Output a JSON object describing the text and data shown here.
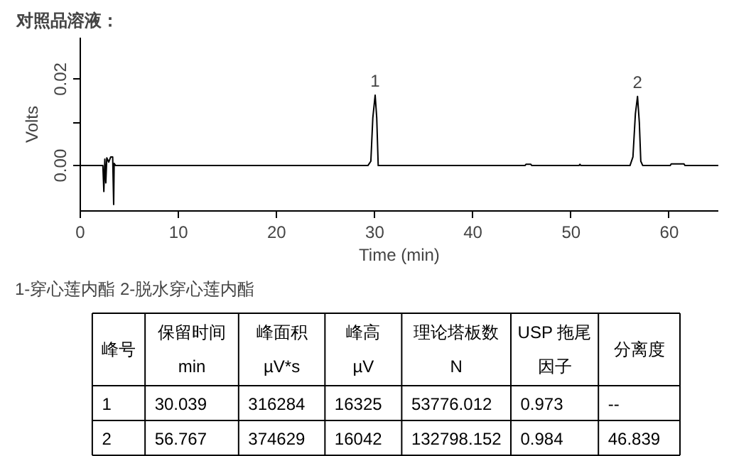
{
  "chart_data": [
    {
      "type": "line",
      "title": "对照品溶液：",
      "xlabel": "Time (min)",
      "ylabel": "Volts",
      "color": "#000000",
      "x": [
        0,
        2.3,
        2.4,
        2.5,
        2.6,
        2.7,
        2.9,
        3.1,
        3.3,
        3.4,
        3.45,
        3.6,
        29.3,
        29.6,
        29.8,
        30.039,
        30.2,
        30.35,
        45.3,
        45.4,
        45.9,
        46,
        50.8,
        50.9,
        51.0,
        56.0,
        56.3,
        56.55,
        56.767,
        56.95,
        57.1,
        57.3,
        60.1,
        60.2,
        61.5,
        61.6,
        65
      ],
      "values": [
        0,
        0,
        -0.006,
        0.0015,
        -0.004,
        0.0018,
        0.0008,
        0.002,
        0.002,
        -0.009,
        0.0005,
        0,
        0,
        0.001,
        0.011,
        0.0163,
        0.011,
        0,
        0,
        0.0003,
        0.0003,
        0,
        0,
        0.0003,
        0,
        0,
        0.002,
        0.012,
        0.016,
        0.01,
        0.001,
        0,
        0,
        0.0004,
        0.0004,
        0,
        0
      ],
      "xlim": [
        0,
        65
      ],
      "ylim": [
        -0.0105,
        0.0296
      ],
      "xticks": [
        0,
        10,
        20,
        30,
        40,
        50,
        60
      ],
      "yticks": [
        {
          "value": 0,
          "label": "0.00"
        },
        {
          "value": 0.01,
          "label": null
        },
        {
          "value": 0.02,
          "label": "0.02"
        }
      ],
      "annotations": [
        {
          "text": "1",
          "x": 30.039,
          "y": 0.0163
        },
        {
          "text": "2",
          "x": 56.767,
          "y": 0.016
        },
        "1-穿心莲内酯    2-脱水穿心莲内酯"
      ]
    },
    {
      "type": "other",
      "categories": [
        "峰号",
        "保留时间\nmin",
        "峰面积\nµV*s",
        "峰高\nµV",
        "理论塔板数\nN",
        "USP 拖尾因子",
        "分离度"
      ],
      "cell_labels": [
        [
          "1",
          "30.039",
          "316284",
          "16325",
          "53776.012",
          "0.973",
          "--"
        ],
        [
          "2",
          "56.767",
          "374629",
          "16042",
          "132798.152",
          "0.984",
          "46.839"
        ]
      ]
    }
  ]
}
